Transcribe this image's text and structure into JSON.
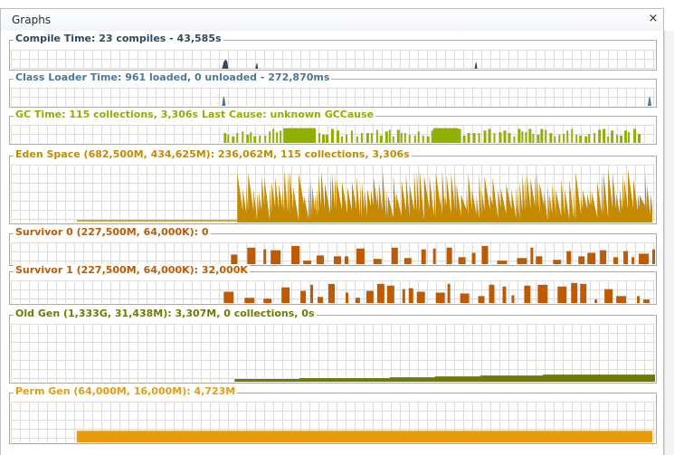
{
  "window": {
    "tab_label": "Graphs",
    "close_glyph": "×",
    "close_icon": "close-icon"
  },
  "graphs": [
    {
      "id": "compile",
      "title": "Compile Time: 23 compiles - 43,585s",
      "color": "#2e4a5e"
    },
    {
      "id": "classloader",
      "title": "Class Loader Time: 961 loaded, 0 unloaded - 272,870ms",
      "color": "#4b7896"
    },
    {
      "id": "gc",
      "title": "GC Time: 115 collections, 3,306s  Last Cause: unknown GCCause",
      "color": "#8fb000"
    },
    {
      "id": "eden",
      "title": "Eden Space (682,500M, 434,625M): 236,062M, 115 collections, 3,306s",
      "color": "#c58a00"
    },
    {
      "id": "survivor0",
      "title": "Survivor 0 (227,500M, 64,000K): 0",
      "color": "#c05a00"
    },
    {
      "id": "survivor1",
      "title": "Survivor 1 (227,500M, 64,000K): 32,000K",
      "color": "#c05a00"
    },
    {
      "id": "oldgen",
      "title": "Old Gen (1,333G, 31,438M): 3,307M, 0 collections, 0s",
      "color": "#6f7a00"
    },
    {
      "id": "permgen",
      "title": "Perm Gen (64,000M, 16,000M): 4,723M",
      "color": "#e89c0c"
    }
  ]
}
